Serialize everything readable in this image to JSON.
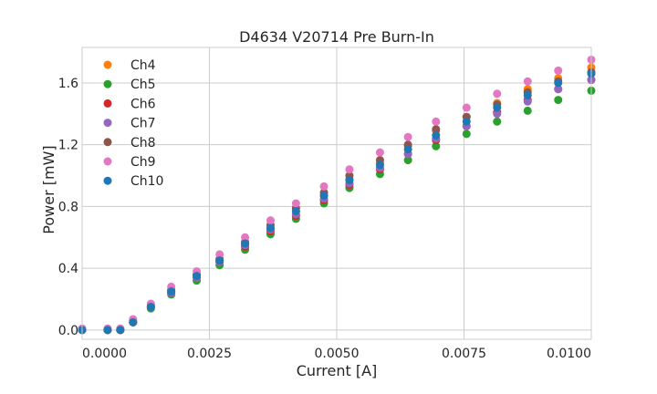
{
  "chart_data": {
    "type": "scatter",
    "title": "D4634 V20714 Pre Burn-In",
    "xlabel": "Current [A]",
    "ylabel": "Power [mW]",
    "xlim": [
      0.0,
      0.01
    ],
    "ylim": [
      -0.06,
      1.83
    ],
    "xticks": [
      "0.0000",
      "0.0025",
      "0.0050",
      "0.0075",
      "0.0100"
    ],
    "yticks": [
      "0.0",
      "0.4",
      "0.8",
      "1.2",
      "1.6"
    ],
    "grid": true,
    "legend_position": "top-left",
    "x": [
      0.0,
      0.0005,
      0.00075,
      0.001,
      0.00135,
      0.00175,
      0.00225,
      0.0027,
      0.0032,
      0.0037,
      0.0042,
      0.00475,
      0.00525,
      0.00585,
      0.0064,
      0.00695,
      0.00755,
      0.00815,
      0.00875,
      0.00935,
      0.01
    ],
    "series": [
      {
        "name": "Ch4",
        "color": "#ff7f0e",
        "values": [
          0.0,
          0.0,
          0.0,
          0.05,
          0.15,
          0.25,
          0.35,
          0.45,
          0.55,
          0.66,
          0.77,
          0.87,
          0.98,
          1.08,
          1.19,
          1.29,
          1.38,
          1.47,
          1.56,
          1.63,
          1.7
        ]
      },
      {
        "name": "Ch5",
        "color": "#2ca02c",
        "values": [
          0.0,
          0.0,
          0.0,
          0.05,
          0.14,
          0.23,
          0.32,
          0.42,
          0.52,
          0.62,
          0.72,
          0.82,
          0.92,
          1.01,
          1.1,
          1.19,
          1.27,
          1.35,
          1.42,
          1.49,
          1.55
        ]
      },
      {
        "name": "Ch6",
        "color": "#d62728",
        "values": [
          0.0,
          0.0,
          0.0,
          0.05,
          0.15,
          0.24,
          0.34,
          0.44,
          0.54,
          0.64,
          0.74,
          0.84,
          0.94,
          1.04,
          1.14,
          1.23,
          1.32,
          1.41,
          1.49,
          1.56,
          1.62
        ]
      },
      {
        "name": "Ch7",
        "color": "#9467bd",
        "values": [
          0.0,
          0.0,
          0.0,
          0.05,
          0.15,
          0.24,
          0.34,
          0.44,
          0.55,
          0.65,
          0.75,
          0.85,
          0.95,
          1.05,
          1.14,
          1.24,
          1.32,
          1.4,
          1.48,
          1.56,
          1.62
        ]
      },
      {
        "name": "Ch8",
        "color": "#8c564b",
        "values": [
          0.0,
          0.0,
          0.0,
          0.06,
          0.16,
          0.26,
          0.36,
          0.46,
          0.57,
          0.68,
          0.79,
          0.89,
          1.0,
          1.1,
          1.2,
          1.3,
          1.38,
          1.46,
          1.54,
          1.61,
          1.67
        ]
      },
      {
        "name": "Ch9",
        "color": "#e377c2",
        "values": [
          0.01,
          0.01,
          0.01,
          0.07,
          0.17,
          0.28,
          0.38,
          0.49,
          0.6,
          0.71,
          0.82,
          0.93,
          1.04,
          1.15,
          1.25,
          1.35,
          1.44,
          1.53,
          1.61,
          1.68,
          1.75
        ]
      },
      {
        "name": "Ch10",
        "color": "#1f77b4",
        "values": [
          0.0,
          0.0,
          0.0,
          0.05,
          0.15,
          0.25,
          0.35,
          0.45,
          0.56,
          0.66,
          0.77,
          0.87,
          0.97,
          1.07,
          1.17,
          1.26,
          1.35,
          1.44,
          1.52,
          1.6,
          1.66
        ]
      }
    ]
  }
}
